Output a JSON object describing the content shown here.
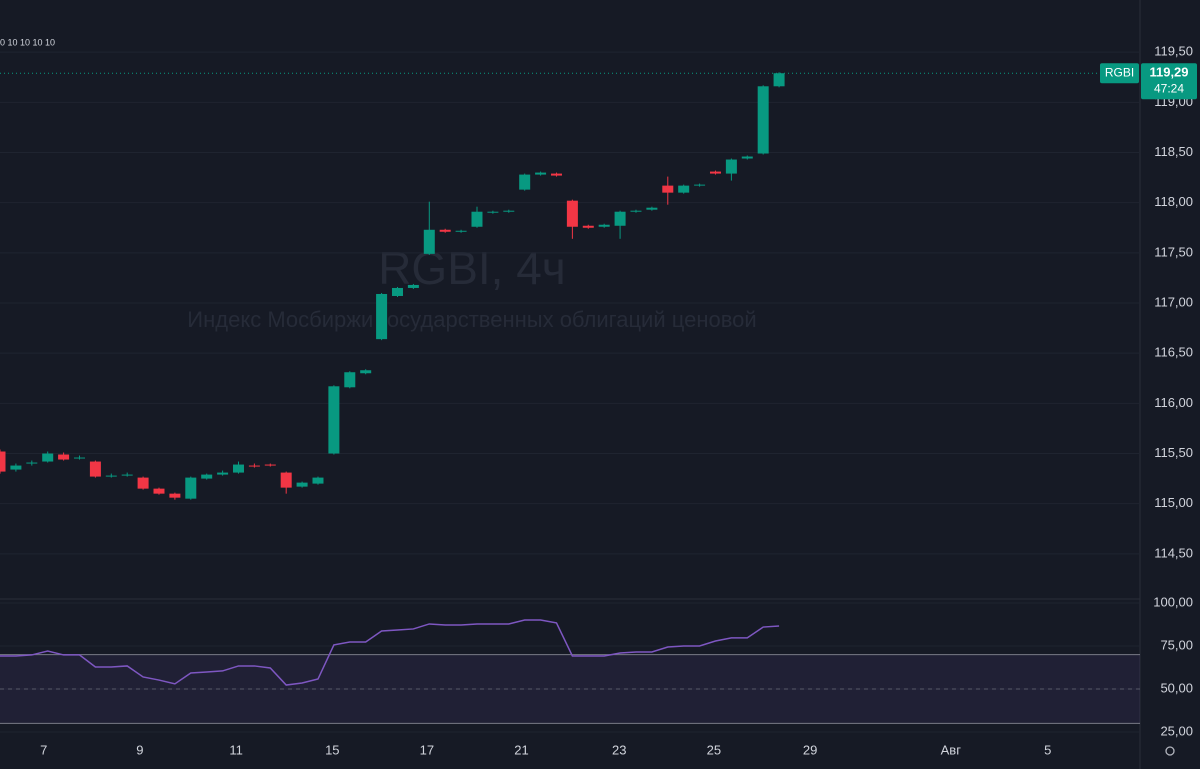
{
  "chart_data": [
    {
      "type": "candlestick",
      "watermark": "RGBI, 4ч",
      "subtitle": "Индекс Мосбиржи государственных облигаций ценовой",
      "legend_fragment": "0 10 10 10 10",
      "symbol": "RGBI",
      "last_price": {
        "value": 119.29,
        "label": "119,29"
      },
      "countdown": "47:24",
      "up_color": "#089981",
      "down_color": "#f23645",
      "open": [
        115.52,
        115.34,
        115.4,
        115.42,
        115.49,
        115.45,
        115.42,
        115.27,
        115.28,
        115.26,
        115.15,
        115.1,
        115.05,
        115.25,
        115.29,
        115.31,
        115.38,
        115.39,
        115.31,
        115.17,
        115.2,
        115.5,
        116.16,
        116.3,
        116.64,
        117.07,
        117.15,
        117.49,
        117.73,
        117.71,
        117.76,
        117.9,
        117.91,
        118.13,
        118.28,
        118.29,
        118.02,
        117.77,
        117.76,
        117.77,
        117.91,
        117.93,
        118.17,
        118.1,
        118.17,
        118.31,
        118.29,
        118.44,
        118.49,
        119.16
      ],
      "high": [
        115.54,
        115.4,
        115.43,
        115.52,
        115.51,
        115.48,
        115.43,
        115.3,
        115.31,
        115.27,
        115.16,
        115.11,
        115.27,
        115.3,
        115.33,
        115.42,
        115.4,
        115.4,
        115.32,
        115.22,
        115.27,
        116.18,
        116.32,
        116.34,
        117.1,
        117.16,
        117.19,
        118.01,
        117.74,
        117.73,
        117.96,
        117.92,
        117.93,
        118.29,
        118.31,
        118.3,
        118.03,
        117.78,
        117.79,
        117.92,
        117.93,
        117.96,
        118.26,
        118.18,
        118.19,
        118.32,
        118.44,
        118.47,
        119.17,
        119.3
      ],
      "low": [
        115.3,
        115.32,
        115.38,
        115.41,
        115.43,
        115.44,
        115.26,
        115.26,
        115.27,
        115.14,
        115.09,
        115.04,
        115.04,
        115.24,
        115.28,
        115.3,
        115.36,
        115.37,
        115.1,
        115.16,
        115.19,
        115.49,
        116.15,
        116.29,
        116.63,
        117.06,
        117.14,
        117.48,
        117.7,
        117.7,
        117.75,
        117.89,
        117.9,
        118.12,
        118.27,
        118.26,
        117.64,
        117.74,
        117.75,
        117.64,
        117.9,
        117.92,
        117.98,
        118.09,
        118.16,
        118.28,
        118.22,
        118.43,
        118.48,
        119.15
      ],
      "close": [
        115.32,
        115.38,
        115.41,
        115.5,
        115.44,
        115.46,
        115.27,
        115.28,
        115.29,
        115.15,
        115.1,
        115.06,
        115.26,
        115.29,
        115.31,
        115.39,
        115.37,
        115.38,
        115.16,
        115.21,
        115.26,
        116.17,
        116.31,
        116.33,
        117.09,
        117.15,
        117.18,
        117.73,
        117.71,
        117.72,
        117.91,
        117.91,
        117.92,
        118.28,
        118.3,
        118.27,
        117.76,
        117.75,
        117.78,
        117.91,
        117.92,
        117.95,
        118.1,
        118.17,
        118.18,
        118.29,
        118.43,
        118.46,
        119.16,
        119.29
      ],
      "xlim": [
        0,
        71.7
      ],
      "ylim": [
        114.06,
        120.02
      ],
      "yticks": [
        {
          "value": 114.5,
          "label": "114,50"
        },
        {
          "value": 115,
          "label": "115,00"
        },
        {
          "value": 115.5,
          "label": "115,50"
        },
        {
          "value": 116,
          "label": "116,00"
        },
        {
          "value": 116.5,
          "label": "116,50"
        },
        {
          "value": 117,
          "label": "117,00"
        },
        {
          "value": 117.5,
          "label": "117,50"
        },
        {
          "value": 118,
          "label": "118,00"
        },
        {
          "value": 118.5,
          "label": "118,50"
        },
        {
          "value": 119,
          "label": "119,00"
        },
        {
          "value": 119.5,
          "label": "119,50"
        }
      ],
      "grid": true
    },
    {
      "type": "line",
      "color": "#7e57c2",
      "band_color": "#7e57c2",
      "values": [
        69.2,
        69.2,
        69.8,
        72.1,
        69.8,
        69.8,
        62.8,
        62.8,
        63.4,
        57,
        55.2,
        53,
        59.3,
        59.9,
        60.5,
        63.4,
        63.4,
        62.2,
        52.3,
        53.5,
        55.8,
        75.6,
        77.3,
        77.3,
        83.7,
        84.3,
        84.9,
        87.8,
        87.2,
        87.2,
        87.8,
        87.8,
        87.8,
        90.1,
        90.1,
        88.4,
        69.2,
        69.2,
        69.2,
        70.9,
        71.5,
        71.5,
        74.4,
        75,
        75,
        77.9,
        79.7,
        79.7,
        86,
        86.6
      ],
      "bands": {
        "upper": 70,
        "middle": 50,
        "lower": 30
      },
      "xlim": [
        0,
        71.7
      ],
      "ylim": [
        19.2,
        102.3
      ],
      "yticks": [
        {
          "value": 25,
          "label": "25,00"
        },
        {
          "value": 50,
          "label": "50,00"
        },
        {
          "value": 75,
          "label": "75,00"
        },
        {
          "value": 100,
          "label": "100,00"
        }
      ],
      "xticks": [
        {
          "value": 2.75,
          "label": "7"
        },
        {
          "value": 8.8,
          "label": "9"
        },
        {
          "value": 14.85,
          "label": "11"
        },
        {
          "value": 20.9,
          "label": "15"
        },
        {
          "value": 26.85,
          "label": "17"
        },
        {
          "value": 32.8,
          "label": "21"
        },
        {
          "value": 38.95,
          "label": "23"
        },
        {
          "value": 44.9,
          "label": "25"
        },
        {
          "value": 50.95,
          "label": "29"
        },
        {
          "value": 59.8,
          "label": "Авг"
        },
        {
          "value": 65.9,
          "label": "5"
        }
      ],
      "grid": true
    }
  ]
}
